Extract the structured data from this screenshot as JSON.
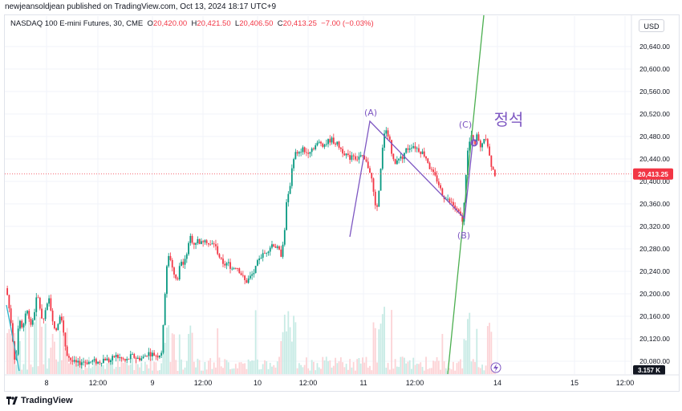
{
  "publish_info": "newjeansoldjean published on TradingView.com, Oct 13, 2024 18:17 UTC+9",
  "legend": {
    "symbol": "NASDAQ 100 E-mini Futures, 30, CME",
    "open_label": "O",
    "open": "20,420.00",
    "high_label": "H",
    "high": "20,421.50",
    "low_label": "L",
    "low": "20,406.50",
    "close_label": "C",
    "close": "20,413.25",
    "change": "−7.00 (−0.03%)"
  },
  "currency_button": "USD",
  "footer_brand": "TradingView",
  "last_price_label": "20,413.25",
  "volume_label": "3.157 K",
  "annotations": {
    "wave_a": "(A)",
    "wave_b": "(B)",
    "wave_c": "(C)",
    "note": "정석"
  },
  "colors": {
    "up": "#089981",
    "down": "#f23645",
    "vol_up": "#c8ebe5",
    "vol_down": "#fcd3d6",
    "wave_line": "#7e57c2",
    "trend_line": "#4caf50",
    "price_tag": "#f23645",
    "grid": "#f0f3fa"
  },
  "chart_data": {
    "type": "candlestick",
    "symbol": "NASDAQ 100 E-mini Futures",
    "interval": "30",
    "exchange": "CME",
    "currency": "USD",
    "y_ticks": [
      20080,
      20120,
      20160,
      20200,
      20240,
      20280,
      20320,
      20360,
      20400,
      20440,
      20480,
      20520,
      20560,
      20600,
      20640
    ],
    "y_tick_labels": [
      "20,080.00",
      "20,120.00",
      "20,160.00",
      "20,200.00",
      "20,240.00",
      "20,280.00",
      "20,320.00",
      "20,360.00",
      "20,400.00",
      "20,440.00",
      "20,480.00",
      "20,520.00",
      "20,560.00",
      "20,600.00",
      "20,640.00"
    ],
    "ylim": [
      20060,
      20680
    ],
    "x_tick_labels": [
      "8",
      "12:00",
      "9",
      "12:00",
      "10",
      "12:00",
      "11",
      "12:00",
      "14",
      "15",
      "12:00"
    ],
    "last_price": 20413.25,
    "price_path": [
      [
        0,
        20210
      ],
      [
        5,
        20150
      ],
      [
        10,
        20070
      ],
      [
        14,
        20160
      ],
      [
        18,
        20130
      ],
      [
        22,
        20180
      ],
      [
        28,
        20140
      ],
      [
        34,
        20200
      ],
      [
        40,
        20150
      ],
      [
        47,
        20190
      ],
      [
        54,
        20130
      ],
      [
        60,
        20170
      ],
      [
        66,
        20095
      ],
      [
        72,
        20080
      ],
      [
        78,
        20075
      ],
      [
        84,
        20080
      ],
      [
        90,
        20078
      ],
      [
        96,
        20080
      ],
      [
        102,
        20078
      ],
      [
        108,
        20085
      ],
      [
        114,
        20080
      ],
      [
        120,
        20090
      ],
      [
        126,
        20085
      ],
      [
        132,
        20080
      ],
      [
        138,
        20090
      ],
      [
        144,
        20085
      ],
      [
        150,
        20085
      ],
      [
        156,
        20095
      ],
      [
        162,
        20092
      ],
      [
        168,
        20090
      ],
      [
        172,
        20100
      ],
      [
        174,
        20180
      ],
      [
        177,
        20250
      ],
      [
        180,
        20270
      ],
      [
        184,
        20240
      ],
      [
        188,
        20220
      ],
      [
        192,
        20260
      ],
      [
        196,
        20250
      ],
      [
        200,
        20280
      ],
      [
        203,
        20300
      ],
      [
        207,
        20290
      ],
      [
        211,
        20295
      ],
      [
        215,
        20290
      ],
      [
        219,
        20300
      ],
      [
        224,
        20285
      ],
      [
        229,
        20290
      ],
      [
        234,
        20270
      ],
      [
        239,
        20250
      ],
      [
        244,
        20255
      ],
      [
        249,
        20245
      ],
      [
        254,
        20250
      ],
      [
        259,
        20235
      ],
      [
        264,
        20220
      ],
      [
        269,
        20230
      ],
      [
        274,
        20240
      ],
      [
        279,
        20265
      ],
      [
        284,
        20270
      ],
      [
        289,
        20280
      ],
      [
        294,
        20290
      ],
      [
        299,
        20280
      ],
      [
        303,
        20270
      ],
      [
        306,
        20295
      ],
      [
        309,
        20360
      ],
      [
        312,
        20380
      ],
      [
        314,
        20410
      ],
      [
        316,
        20440
      ],
      [
        319,
        20450
      ],
      [
        322,
        20445
      ],
      [
        326,
        20460
      ],
      [
        330,
        20450
      ],
      [
        334,
        20455
      ],
      [
        338,
        20460
      ],
      [
        342,
        20465
      ],
      [
        346,
        20470
      ],
      [
        350,
        20465
      ],
      [
        354,
        20470
      ],
      [
        358,
        20475
      ],
      [
        362,
        20470
      ],
      [
        366,
        20465
      ],
      [
        370,
        20455
      ],
      [
        374,
        20450
      ],
      [
        378,
        20440
      ],
      [
        382,
        20450
      ],
      [
        386,
        20440
      ],
      [
        390,
        20445
      ],
      [
        394,
        20440
      ],
      [
        398,
        20430
      ],
      [
        402,
        20415
      ],
      [
        405,
        20380
      ],
      [
        408,
        20340
      ],
      [
        410,
        20360
      ],
      [
        412,
        20400
      ],
      [
        414,
        20440
      ],
      [
        416,
        20475
      ],
      [
        418,
        20500
      ],
      [
        420,
        20490
      ],
      [
        423,
        20470
      ],
      [
        426,
        20440
      ],
      [
        429,
        20430
      ],
      [
        432,
        20445
      ],
      [
        436,
        20440
      ],
      [
        440,
        20455
      ],
      [
        444,
        20460
      ],
      [
        448,
        20465
      ],
      [
        452,
        20460
      ],
      [
        456,
        20455
      ],
      [
        460,
        20450
      ],
      [
        464,
        20440
      ],
      [
        468,
        20420
      ],
      [
        472,
        20410
      ],
      [
        476,
        20400
      ],
      [
        480,
        20380
      ],
      [
        484,
        20370
      ],
      [
        488,
        20365
      ],
      [
        492,
        20360
      ],
      [
        496,
        20350
      ],
      [
        500,
        20340
      ],
      [
        503,
        20330
      ],
      [
        505,
        20360
      ],
      [
        507,
        20410
      ],
      [
        509,
        20450
      ],
      [
        511,
        20470
      ],
      [
        513,
        20480
      ],
      [
        515,
        20475
      ],
      [
        517,
        20470
      ],
      [
        519,
        20480
      ],
      [
        521,
        20470
      ],
      [
        523,
        20460
      ],
      [
        526,
        20475
      ],
      [
        529,
        20480
      ],
      [
        531,
        20465
      ],
      [
        533,
        20445
      ],
      [
        535,
        20430
      ],
      [
        537,
        20420
      ],
      [
        539,
        20413
      ]
    ],
    "wave_points": {
      "start": [
        "10/10 ~21:00",
        20305
      ],
      "A": [
        "10/11 ~01:00",
        20505
      ],
      "B": [
        "10/11 ~17:30",
        20335
      ],
      "C": [
        "10/11 ~19:30",
        20480
      ]
    }
  }
}
